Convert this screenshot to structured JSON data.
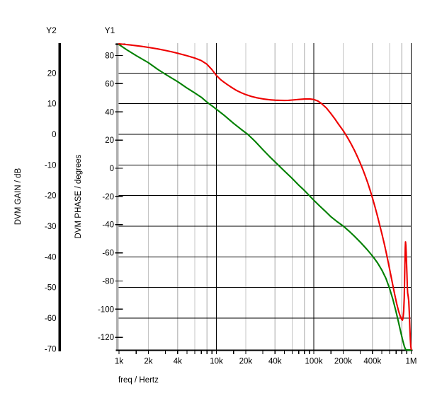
{
  "window": {
    "background": "#ffffff"
  },
  "chart_data": {
    "type": "line",
    "title": "",
    "x_axis": {
      "label": "freq / Hertz",
      "scale": "log",
      "range": [
        1000,
        1000000
      ],
      "tick_values": [
        1000,
        2000,
        4000,
        10000,
        20000,
        40000,
        100000,
        200000,
        400000,
        1000000
      ],
      "tick_labels": [
        "1k",
        "2k",
        "4k",
        "10k",
        "20k",
        "40k",
        "100k",
        "200k",
        "400k",
        "1M"
      ],
      "minor_grid_multipliers": [
        2,
        4,
        6,
        8
      ],
      "minor_tick_multipliers": [
        1,
        1.5,
        2,
        3,
        4,
        5,
        6,
        7,
        8,
        9
      ],
      "major_grid_values": [
        10000,
        100000,
        1000000
      ]
    },
    "y1_axis": {
      "title": "Y1",
      "label": "DVM PHASE / degrees",
      "unit": "degrees",
      "range": [
        -128.8,
        88.3
      ],
      "ticks": [
        80,
        60,
        40,
        20,
        0,
        -20,
        -40,
        -60,
        -80,
        -100,
        -120
      ]
    },
    "y2_axis": {
      "title": "Y2",
      "label": "DVM GAIN / dB",
      "unit": "dB",
      "range": [
        -70.4,
        29.5
      ],
      "ticks": [
        20,
        10,
        0,
        -10,
        -20,
        -30,
        -40,
        -50,
        -60,
        -70
      ],
      "grid_lines": [
        20,
        10,
        0,
        -10,
        -20,
        -30,
        -40,
        -50,
        -60
      ]
    },
    "grid": {
      "major_color": "#000000",
      "minor_color": "#c4c4c4",
      "y1_spine_color": "#b0b0b0",
      "grid_on": true
    },
    "series": [
      {
        "name": "DVM GAIN",
        "axis": "y2",
        "color": "#008000",
        "points": [
          [
            1000,
            29.3
          ],
          [
            1200,
            27.6
          ],
          [
            1500,
            25.7
          ],
          [
            2000,
            23.4
          ],
          [
            2500,
            21.2
          ],
          [
            3000,
            19.6
          ],
          [
            4000,
            17.2
          ],
          [
            5000,
            15.1
          ],
          [
            6000,
            13.5
          ],
          [
            7000,
            12.1
          ],
          [
            8000,
            10.5
          ],
          [
            9000,
            9.3
          ],
          [
            10000,
            8.2
          ],
          [
            12000,
            6.2
          ],
          [
            15000,
            3.6
          ],
          [
            18000,
            1.6
          ],
          [
            21000,
            0.0
          ],
          [
            25000,
            -2.3
          ],
          [
            30000,
            -5.0
          ],
          [
            35000,
            -7.2
          ],
          [
            40000,
            -9.0
          ],
          [
            45000,
            -10.6
          ],
          [
            50000,
            -12.0
          ],
          [
            60000,
            -14.4
          ],
          [
            70000,
            -16.6
          ],
          [
            80000,
            -18.3
          ],
          [
            90000,
            -20.0
          ],
          [
            100000,
            -21.5
          ],
          [
            115000,
            -23.4
          ],
          [
            130000,
            -25.0
          ],
          [
            150000,
            -26.9
          ],
          [
            175000,
            -28.6
          ],
          [
            200000,
            -29.9
          ],
          [
            230000,
            -31.6
          ],
          [
            260000,
            -33.2
          ],
          [
            300000,
            -35.2
          ],
          [
            350000,
            -37.5
          ],
          [
            400000,
            -39.7
          ],
          [
            450000,
            -41.9
          ],
          [
            500000,
            -44.3
          ],
          [
            550000,
            -47.0
          ],
          [
            600000,
            -50.3
          ],
          [
            650000,
            -54.0
          ],
          [
            700000,
            -58.0
          ],
          [
            740000,
            -61.2
          ],
          [
            780000,
            -64.5
          ],
          [
            820000,
            -67.3
          ],
          [
            850000,
            -69.2
          ],
          [
            875000,
            -70.2
          ],
          [
            900000,
            -70.4
          ],
          [
            950000,
            -70.4
          ],
          [
            1000000,
            -70.4
          ]
        ]
      },
      {
        "name": "DVM PHASE",
        "axis": "y1",
        "color": "#ee0000",
        "points": [
          [
            1000,
            88.3
          ],
          [
            1300,
            87.5
          ],
          [
            1700,
            86.5
          ],
          [
            2000,
            85.8
          ],
          [
            2500,
            84.7
          ],
          [
            3000,
            83.6
          ],
          [
            3500,
            82.6
          ],
          [
            4000,
            81.6
          ],
          [
            5000,
            79.8
          ],
          [
            6000,
            78.2
          ],
          [
            7000,
            76.4
          ],
          [
            8000,
            73.8
          ],
          [
            9000,
            70.0
          ],
          [
            10000,
            65.8
          ],
          [
            11000,
            63.0
          ],
          [
            12000,
            61.0
          ],
          [
            13000,
            59.3
          ],
          [
            14000,
            57.8
          ],
          [
            16000,
            55.3
          ],
          [
            18000,
            53.6
          ],
          [
            20000,
            52.3
          ],
          [
            23000,
            50.9
          ],
          [
            26000,
            50.0
          ],
          [
            30000,
            49.2
          ],
          [
            35000,
            48.6
          ],
          [
            40000,
            48.3
          ],
          [
            45000,
            48.2
          ],
          [
            50000,
            48.1
          ],
          [
            55000,
            48.2
          ],
          [
            60000,
            48.4
          ],
          [
            70000,
            48.8
          ],
          [
            80000,
            49.1
          ],
          [
            90000,
            49.2
          ],
          [
            100000,
            48.8
          ],
          [
            110000,
            47.7
          ],
          [
            120000,
            45.9
          ],
          [
            135000,
            42.7
          ],
          [
            150000,
            38.8
          ],
          [
            165000,
            34.9
          ],
          [
            180000,
            31.1
          ],
          [
            200000,
            26.8
          ],
          [
            220000,
            22.2
          ],
          [
            240000,
            17.6
          ],
          [
            260000,
            13.0
          ],
          [
            280000,
            8.3
          ],
          [
            300000,
            3.6
          ],
          [
            320000,
            -1.2
          ],
          [
            340000,
            -6.0
          ],
          [
            360000,
            -10.9
          ],
          [
            380000,
            -15.9
          ],
          [
            400000,
            -21.0
          ],
          [
            425000,
            -27.4
          ],
          [
            450000,
            -33.8
          ],
          [
            475000,
            -40.2
          ],
          [
            500000,
            -46.4
          ],
          [
            530000,
            -53.8
          ],
          [
            560000,
            -61.4
          ],
          [
            590000,
            -69.0
          ],
          [
            620000,
            -76.5
          ],
          [
            650000,
            -83.6
          ],
          [
            680000,
            -90.2
          ],
          [
            710000,
            -96.0
          ],
          [
            740000,
            -101.0
          ],
          [
            770000,
            -104.8
          ],
          [
            795000,
            -107.0
          ],
          [
            812000,
            -107.8
          ],
          [
            825000,
            -106.3
          ],
          [
            838000,
            -101.5
          ],
          [
            848000,
            -92.0
          ],
          [
            856000,
            -79.0
          ],
          [
            863000,
            -66.0
          ],
          [
            869000,
            -56.5
          ],
          [
            874000,
            -52.3
          ],
          [
            880000,
            -54.5
          ],
          [
            888000,
            -59.5
          ],
          [
            896000,
            -66.5
          ],
          [
            904000,
            -75.0
          ],
          [
            912000,
            -83.5
          ],
          [
            920000,
            -88.5
          ],
          [
            932000,
            -91.0
          ],
          [
            944000,
            -94.5
          ],
          [
            956000,
            -102.0
          ],
          [
            968000,
            -113.0
          ],
          [
            980000,
            -121.5
          ],
          [
            990000,
            -126.0
          ],
          [
            1000000,
            -128.5
          ]
        ]
      }
    ]
  }
}
